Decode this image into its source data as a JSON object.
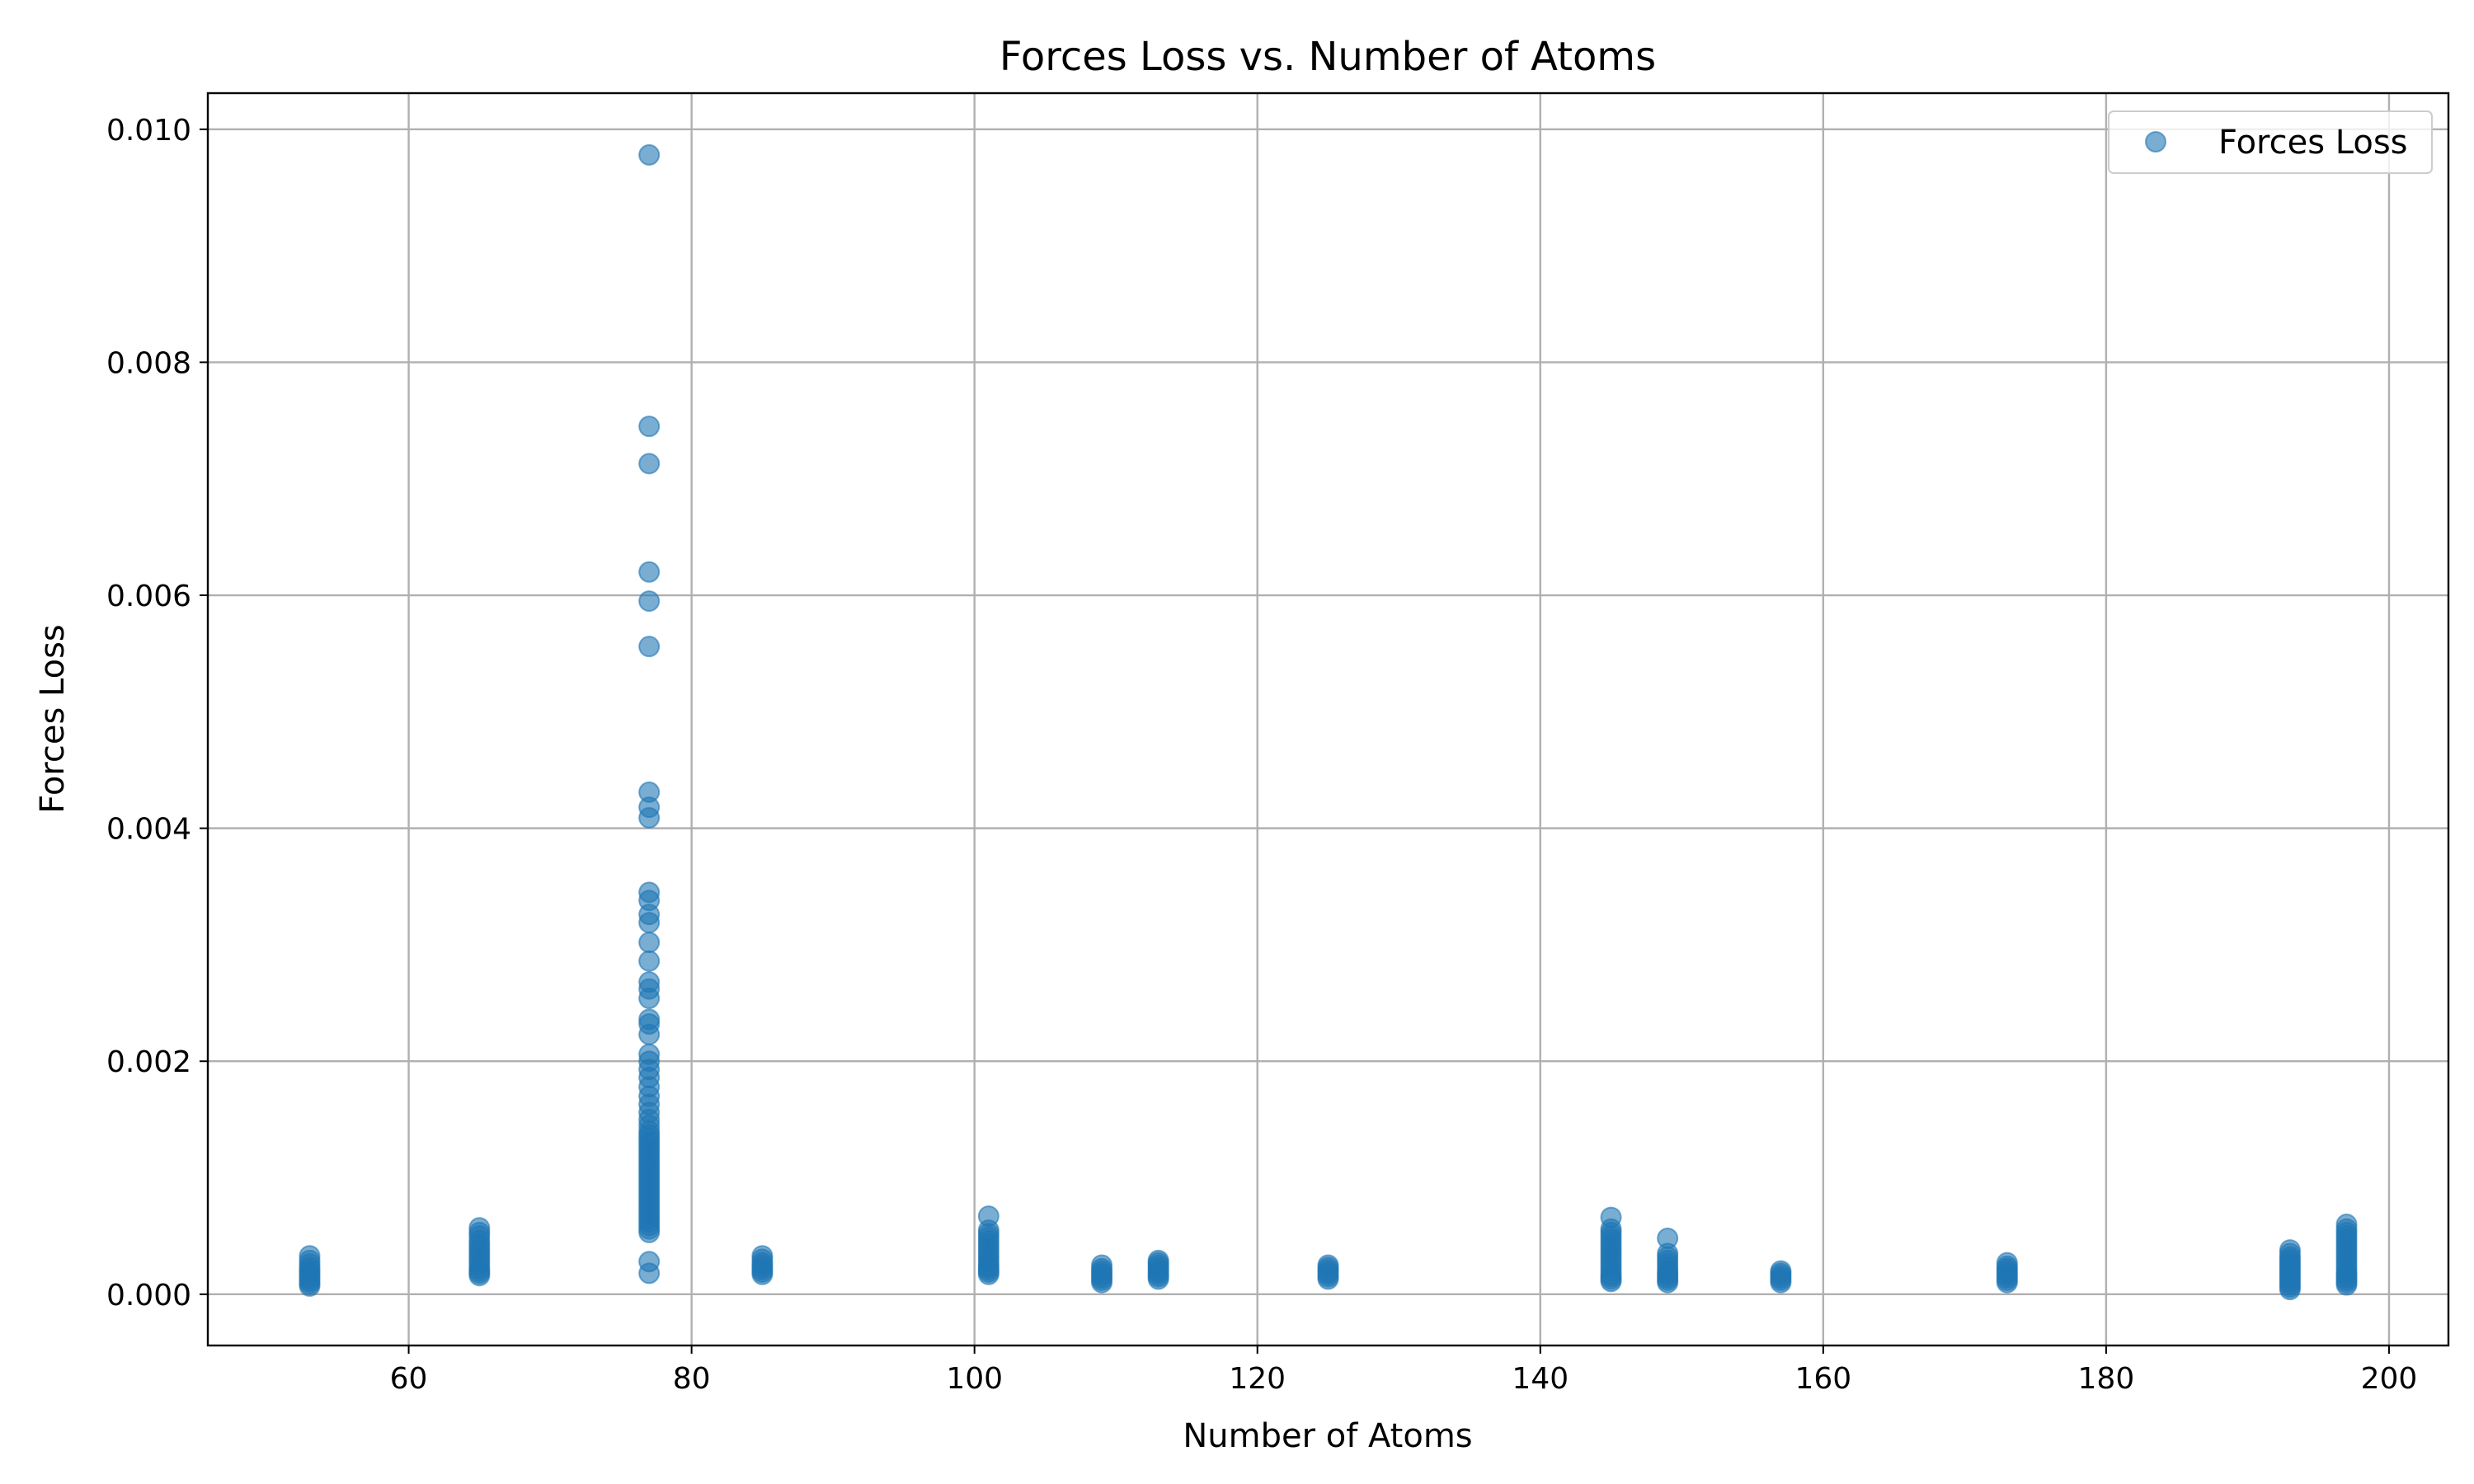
{
  "colors": {
    "marker": "#1f77b4",
    "grid": "#b0b0b0"
  },
  "chart_data": {
    "type": "scatter",
    "title": "Forces Loss vs. Number of Atoms",
    "xlabel": "Number of Atoms",
    "ylabel": "Forces Loss",
    "xlim": [
      45.8,
      204.2
    ],
    "ylim": [
      -0.00044,
      0.01031
    ],
    "x_ticks": [
      60,
      80,
      100,
      120,
      140,
      160,
      180,
      200
    ],
    "x_tick_labels": [
      "60",
      "80",
      "100",
      "120",
      "140",
      "160",
      "180",
      "200"
    ],
    "y_ticks": [
      0.0,
      0.002,
      0.004,
      0.006,
      0.008,
      0.01
    ],
    "y_tick_labels": [
      "0.000",
      "0.002",
      "0.004",
      "0.006",
      "0.008",
      "0.010"
    ],
    "grid": true,
    "legend_position": "top-right",
    "series": [
      {
        "name": "Forces Loss",
        "color": "#1f77b4",
        "marker": "circle",
        "alpha": 0.6,
        "points": [
          [
            53,
            7e-05
          ],
          [
            53,
            9e-05
          ],
          [
            53,
            0.00011
          ],
          [
            53,
            0.00013
          ],
          [
            53,
            0.00015
          ],
          [
            53,
            0.00017
          ],
          [
            53,
            0.00019
          ],
          [
            53,
            0.00021
          ],
          [
            53,
            0.00023
          ],
          [
            53,
            0.00026
          ],
          [
            53,
            0.00029
          ],
          [
            53,
            0.00033
          ],
          [
            65,
            0.00016
          ],
          [
            65,
            0.00018
          ],
          [
            65,
            0.0002
          ],
          [
            65,
            0.00022
          ],
          [
            65,
            0.00025
          ],
          [
            65,
            0.00028
          ],
          [
            65,
            0.00031
          ],
          [
            65,
            0.00034
          ],
          [
            65,
            0.00037
          ],
          [
            65,
            0.0004
          ],
          [
            65,
            0.00043
          ],
          [
            65,
            0.00046
          ],
          [
            65,
            0.0005
          ],
          [
            65,
            0.00053
          ],
          [
            65,
            0.00057
          ],
          [
            77,
            0.00018
          ],
          [
            77,
            0.00028
          ],
          [
            77,
            0.00053
          ],
          [
            77,
            0.00056
          ],
          [
            77,
            0.00059
          ],
          [
            77,
            0.00062
          ],
          [
            77,
            0.00065
          ],
          [
            77,
            0.00068
          ],
          [
            77,
            0.00071
          ],
          [
            77,
            0.00074
          ],
          [
            77,
            0.00077
          ],
          [
            77,
            0.0008
          ],
          [
            77,
            0.00083
          ],
          [
            77,
            0.00086
          ],
          [
            77,
            0.00089
          ],
          [
            77,
            0.00092
          ],
          [
            77,
            0.00095
          ],
          [
            77,
            0.00098
          ],
          [
            77,
            0.00101
          ],
          [
            77,
            0.00104
          ],
          [
            77,
            0.00107
          ],
          [
            77,
            0.0011
          ],
          [
            77,
            0.00113
          ],
          [
            77,
            0.00116
          ],
          [
            77,
            0.00119
          ],
          [
            77,
            0.00122
          ],
          [
            77,
            0.00125
          ],
          [
            77,
            0.00128
          ],
          [
            77,
            0.00131
          ],
          [
            77,
            0.00134
          ],
          [
            77,
            0.00137
          ],
          [
            77,
            0.0014
          ],
          [
            77,
            0.00145
          ],
          [
            77,
            0.0015
          ],
          [
            77,
            0.00156
          ],
          [
            77,
            0.00163
          ],
          [
            77,
            0.0017
          ],
          [
            77,
            0.00178
          ],
          [
            77,
            0.00186
          ],
          [
            77,
            0.00193
          ],
          [
            77,
            0.002
          ],
          [
            77,
            0.00206
          ],
          [
            77,
            0.00223
          ],
          [
            77,
            0.00232
          ],
          [
            77,
            0.00236
          ],
          [
            77,
            0.00254
          ],
          [
            77,
            0.00262
          ],
          [
            77,
            0.00268
          ],
          [
            77,
            0.00286
          ],
          [
            77,
            0.00302
          ],
          [
            77,
            0.00319
          ],
          [
            77,
            0.00326
          ],
          [
            77,
            0.00338
          ],
          [
            77,
            0.00345
          ],
          [
            77,
            0.00409
          ],
          [
            77,
            0.00418
          ],
          [
            77,
            0.00431
          ],
          [
            77,
            0.00556
          ],
          [
            77,
            0.00595
          ],
          [
            77,
            0.0062
          ],
          [
            77,
            0.00713
          ],
          [
            77,
            0.00745
          ],
          [
            77,
            0.00978
          ],
          [
            85,
            0.00017
          ],
          [
            85,
            0.00019
          ],
          [
            85,
            0.00021
          ],
          [
            85,
            0.00023
          ],
          [
            85,
            0.00025
          ],
          [
            85,
            0.00027
          ],
          [
            85,
            0.0003
          ],
          [
            85,
            0.00033
          ],
          [
            101,
            0.00017
          ],
          [
            101,
            0.00019
          ],
          [
            101,
            0.00021
          ],
          [
            101,
            0.00023
          ],
          [
            101,
            0.00025
          ],
          [
            101,
            0.00028
          ],
          [
            101,
            0.00031
          ],
          [
            101,
            0.00034
          ],
          [
            101,
            0.00037
          ],
          [
            101,
            0.0004
          ],
          [
            101,
            0.00043
          ],
          [
            101,
            0.00046
          ],
          [
            101,
            0.00049
          ],
          [
            101,
            0.00052
          ],
          [
            101,
            0.00055
          ],
          [
            101,
            0.00067
          ],
          [
            109,
            0.0001
          ],
          [
            109,
            0.00012
          ],
          [
            109,
            0.00014
          ],
          [
            109,
            0.00016
          ],
          [
            109,
            0.00018
          ],
          [
            109,
            0.0002
          ],
          [
            109,
            0.00022
          ],
          [
            109,
            0.00025
          ],
          [
            113,
            0.00013
          ],
          [
            113,
            0.00015
          ],
          [
            113,
            0.00017
          ],
          [
            113,
            0.00019
          ],
          [
            113,
            0.00021
          ],
          [
            113,
            0.00023
          ],
          [
            113,
            0.00025
          ],
          [
            113,
            0.00027
          ],
          [
            113,
            0.00029
          ],
          [
            125,
            0.00013
          ],
          [
            125,
            0.00015
          ],
          [
            125,
            0.00017
          ],
          [
            125,
            0.00019
          ],
          [
            125,
            0.00021
          ],
          [
            125,
            0.00023
          ],
          [
            125,
            0.00025
          ],
          [
            145,
            0.00011
          ],
          [
            145,
            0.00013
          ],
          [
            145,
            0.00015
          ],
          [
            145,
            0.00017
          ],
          [
            145,
            0.0002
          ],
          [
            145,
            0.00023
          ],
          [
            145,
            0.00026
          ],
          [
            145,
            0.00029
          ],
          [
            145,
            0.00032
          ],
          [
            145,
            0.00035
          ],
          [
            145,
            0.00038
          ],
          [
            145,
            0.00041
          ],
          [
            145,
            0.00044
          ],
          [
            145,
            0.00047
          ],
          [
            145,
            0.0005
          ],
          [
            145,
            0.00053
          ],
          [
            145,
            0.00056
          ],
          [
            145,
            0.00066
          ],
          [
            149,
            0.0001
          ],
          [
            149,
            0.00012
          ],
          [
            149,
            0.00014
          ],
          [
            149,
            0.00016
          ],
          [
            149,
            0.00018
          ],
          [
            149,
            0.0002
          ],
          [
            149,
            0.00023
          ],
          [
            149,
            0.00026
          ],
          [
            149,
            0.00029
          ],
          [
            149,
            0.00032
          ],
          [
            149,
            0.00035
          ],
          [
            149,
            0.00048
          ],
          [
            157,
            0.0001
          ],
          [
            157,
            0.00012
          ],
          [
            157,
            0.00014
          ],
          [
            157,
            0.00016
          ],
          [
            157,
            0.00018
          ],
          [
            157,
            0.0002
          ],
          [
            173,
            0.0001
          ],
          [
            173,
            0.00012
          ],
          [
            173,
            0.00014
          ],
          [
            173,
            0.00016
          ],
          [
            173,
            0.00018
          ],
          [
            173,
            0.0002
          ],
          [
            173,
            0.00022
          ],
          [
            173,
            0.00024
          ],
          [
            173,
            0.00027
          ],
          [
            193,
            4e-05
          ],
          [
            193,
            6e-05
          ],
          [
            193,
            8e-05
          ],
          [
            193,
            0.0001
          ],
          [
            193,
            0.00012
          ],
          [
            193,
            0.00014
          ],
          [
            193,
            0.00016
          ],
          [
            193,
            0.00018
          ],
          [
            193,
            0.0002
          ],
          [
            193,
            0.00022
          ],
          [
            193,
            0.00024
          ],
          [
            193,
            0.00026
          ],
          [
            193,
            0.00028
          ],
          [
            193,
            0.0003
          ],
          [
            193,
            0.00032
          ],
          [
            193,
            0.00035
          ],
          [
            193,
            0.00038
          ],
          [
            197,
            8e-05
          ],
          [
            197,
            0.0001
          ],
          [
            197,
            0.00012
          ],
          [
            197,
            0.00014
          ],
          [
            197,
            0.00016
          ],
          [
            197,
            0.00018
          ],
          [
            197,
            0.0002
          ],
          [
            197,
            0.00023
          ],
          [
            197,
            0.00026
          ],
          [
            197,
            0.00029
          ],
          [
            197,
            0.00032
          ],
          [
            197,
            0.00035
          ],
          [
            197,
            0.00038
          ],
          [
            197,
            0.00041
          ],
          [
            197,
            0.00044
          ],
          [
            197,
            0.00047
          ],
          [
            197,
            0.0005
          ],
          [
            197,
            0.00053
          ],
          [
            197,
            0.00056
          ],
          [
            197,
            0.0006
          ]
        ]
      }
    ]
  }
}
